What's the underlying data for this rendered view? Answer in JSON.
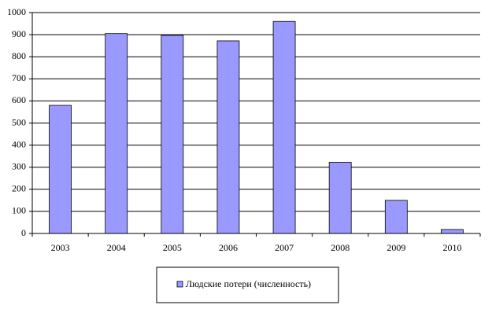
{
  "chart_data": {
    "type": "bar",
    "categories": [
      "2003",
      "2004",
      "2005",
      "2006",
      "2007",
      "2008",
      "2009",
      "2010"
    ],
    "series": [
      {
        "name": "Людские потери (численность)",
        "color": "#9999ff",
        "values": [
          580,
          905,
          897,
          872,
          960,
          322,
          150,
          18
        ]
      }
    ],
    "ylim": [
      0,
      1000
    ],
    "yticks": [
      0,
      100,
      200,
      300,
      400,
      500,
      600,
      700,
      800,
      900,
      1000
    ],
    "grid": true,
    "legend": "bottom"
  }
}
